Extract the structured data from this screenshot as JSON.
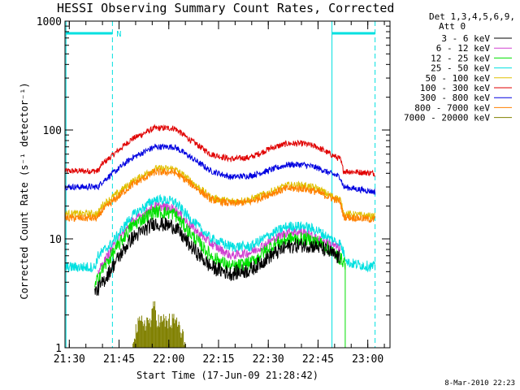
{
  "title": "HESSI Observing Summary Count Rates, Corrected",
  "footnote": "8-Mar-2010 22:23",
  "legend": {
    "header_line1": "Det 1,3,4,5,6,9,",
    "header_line2": "Att 0",
    "entries": [
      {
        "label": "3 - 6 keV",
        "color": "#000000"
      },
      {
        "label": "6 - 12 keV",
        "color": "#d040d0"
      },
      {
        "label": "12 - 25 keV",
        "color": "#00e000"
      },
      {
        "label": "25 - 50 keV",
        "color": "#00e0e0"
      },
      {
        "label": "50 - 100 keV",
        "color": "#e0c000"
      },
      {
        "label": "100 - 300 keV",
        "color": "#e00000"
      },
      {
        "label": "300 - 800 keV",
        "color": "#0000e0"
      },
      {
        "label": "800 - 7000 keV",
        "color": "#ff8000"
      },
      {
        "label": "7000 - 20000 keV",
        "color": "#808000"
      }
    ]
  },
  "axes": {
    "ylabel": "Corrected Count Rate (s⁻¹ detector⁻¹)",
    "xlabel": "Start Time (17-Jun-09 21:28:42)"
  },
  "annotations": {
    "n_marker": "N",
    "status_color": "#00e0e0"
  },
  "chart_data": {
    "type": "line",
    "title": "HESSI Observing Summary Count Rates, Corrected",
    "xlabel": "Start Time (17-Jun-09 21:28:42)",
    "ylabel": "Corrected Count Rate (s⁻¹ detector⁻¹)",
    "x_unit": "minutes after 21:28:42",
    "x_ticks": [
      {
        "x": 1.3,
        "label": "21:30"
      },
      {
        "x": 16.3,
        "label": "21:45"
      },
      {
        "x": 31.3,
        "label": "22:00"
      },
      {
        "x": 46.3,
        "label": "22:15"
      },
      {
        "x": 61.3,
        "label": "22:30"
      },
      {
        "x": 76.3,
        "label": "22:45"
      },
      {
        "x": 91.3,
        "label": "23:00"
      }
    ],
    "xlim": [
      0,
      98
    ],
    "y_scale": "log",
    "ylim": [
      1,
      1000
    ],
    "y_ticks": [
      {
        "y": 1,
        "label": "1"
      },
      {
        "y": 10,
        "label": "10"
      },
      {
        "y": 100,
        "label": "100"
      },
      {
        "y": 1000,
        "label": "1000"
      }
    ],
    "grid": false,
    "legend_position": "right",
    "vertical_markers": [
      {
        "x": 0.3,
        "style": "solid"
      },
      {
        "x": 14.3,
        "style": "dashed"
      },
      {
        "x": 80.5,
        "style": "solid"
      },
      {
        "x": 93.5,
        "style": "dashed"
      }
    ],
    "series": [
      {
        "name": "100 - 300 keV",
        "color": "#e00000",
        "noise": 0.04,
        "x": [
          0,
          10,
          11,
          20,
          27,
          33,
          38,
          44,
          50,
          56,
          62,
          67,
          72,
          76,
          80,
          83,
          84,
          93.5
        ],
        "y": [
          42,
          42,
          48,
          82,
          104,
          104,
          80,
          60,
          54,
          56,
          68,
          75,
          75,
          70,
          60,
          54,
          42,
          40
        ]
      },
      {
        "name": "300 - 800 keV",
        "color": "#0000e0",
        "noise": 0.04,
        "x": [
          0,
          10,
          11,
          20,
          27,
          33,
          38,
          44,
          50,
          56,
          62,
          67,
          72,
          76,
          80,
          83,
          84,
          93.5
        ],
        "y": [
          30,
          30,
          33,
          55,
          70,
          70,
          56,
          42,
          37,
          38,
          43,
          48,
          48,
          45,
          40,
          37,
          30,
          27
        ]
      },
      {
        "name": "50 - 100 keV",
        "color": "#e0c000",
        "noise": 0.05,
        "x": [
          0,
          10,
          11,
          20,
          27,
          33,
          38,
          44,
          50,
          56,
          62,
          67,
          72,
          76,
          80,
          83,
          84,
          93.5
        ],
        "y": [
          17,
          17,
          20,
          33,
          44,
          44,
          34,
          24,
          22,
          23,
          27,
          31,
          31,
          29,
          25,
          23,
          17,
          16
        ]
      },
      {
        "name": "800 - 7000 keV",
        "color": "#ff8000",
        "noise": 0.05,
        "x": [
          0,
          10,
          11,
          20,
          27,
          33,
          38,
          44,
          50,
          56,
          62,
          67,
          72,
          76,
          80,
          83,
          84,
          93.5
        ],
        "y": [
          15.5,
          15.5,
          18,
          31,
          41,
          41,
          32,
          23,
          21,
          22,
          26,
          29,
          29,
          27,
          24,
          22,
          16,
          15
        ]
      },
      {
        "name": "25 - 50 keV",
        "color": "#00e0e0",
        "noise": 0.07,
        "x": [
          0,
          9,
          10,
          14,
          20,
          27,
          33,
          38,
          44,
          50,
          56,
          62,
          67,
          72,
          76,
          80,
          83,
          84,
          85.5,
          93.5
        ],
        "y": [
          5.5,
          5.5,
          7,
          9,
          16,
          23,
          22,
          15,
          10,
          8.5,
          8.5,
          11,
          13,
          13,
          12,
          10,
          9,
          7.5,
          6,
          5.5
        ]
      },
      {
        "name": "6 - 12 keV",
        "color": "#d040d0",
        "noise": 0.06,
        "x": [
          10,
          14,
          20,
          27,
          33,
          38,
          44,
          50,
          56,
          62,
          67,
          72,
          76,
          80,
          83
        ],
        "y": [
          5,
          8,
          14,
          20,
          19,
          13,
          9,
          7,
          7.5,
          9.5,
          11.5,
          11.5,
          10,
          9,
          8
        ]
      },
      {
        "name": "12 - 25 keV",
        "color": "#00e000",
        "noise": 0.09,
        "x": [
          9,
          10,
          14,
          20,
          27,
          33,
          38,
          44,
          50,
          56,
          62,
          67,
          72,
          76,
          80,
          82,
          84.5
        ],
        "y": [
          3.5,
          4.5,
          7,
          13,
          18,
          17,
          11,
          7,
          5.5,
          6,
          8.5,
          10,
          10,
          9.5,
          8,
          7,
          6
        ]
      },
      {
        "name": "3 - 6 keV",
        "color": "#000000",
        "noise": 0.1,
        "x": [
          9,
          11,
          15,
          20,
          27,
          33,
          38,
          44,
          50,
          56,
          62,
          67,
          72,
          76,
          80,
          83
        ],
        "y": [
          3.2,
          3.8,
          6,
          10,
          14,
          13,
          8.5,
          5.5,
          4.8,
          5.2,
          7,
          8.5,
          8.8,
          8.5,
          7.5,
          6.5
        ]
      },
      {
        "name": "7000 - 20000 keV",
        "color": "#808000",
        "noise": 0.0,
        "style": "bars",
        "x": [
          20.5,
          22,
          23.5,
          25,
          26,
          27,
          28,
          29,
          30,
          31,
          32,
          33,
          34,
          35,
          36.5
        ],
        "y": [
          1.5,
          1.8,
          2,
          2,
          2,
          3,
          2,
          2,
          2,
          2,
          2,
          2,
          2,
          1.5,
          1.3
        ]
      }
    ]
  }
}
